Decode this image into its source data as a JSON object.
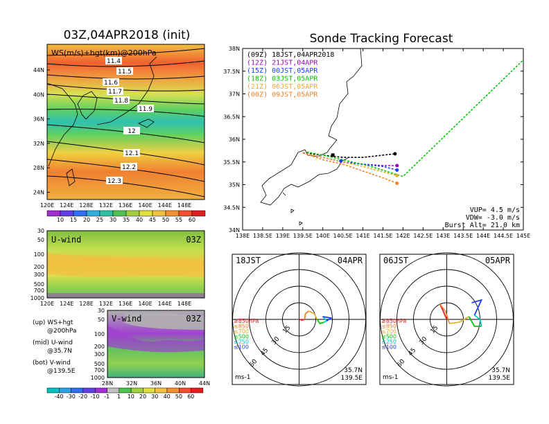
{
  "left_title": "03Z,04APR2018 (init)",
  "right_title": "Sonde Tracking Forecast",
  "ws_panel": {
    "label": "WS(m/s)+hgt(km)@200hPa",
    "lat_labels": [
      "44N",
      "40N",
      "36N",
      "32N",
      "28N",
      "24N"
    ],
    "lon_labels": [
      "120E",
      "124E",
      "128E",
      "132E",
      "136E",
      "140E",
      "144E",
      "148E"
    ],
    "contours": [
      "11.4",
      "11.5",
      "11.6",
      "11.7",
      "11.8",
      "11.9",
      "12",
      "12.1",
      "12.2",
      "12.3"
    ],
    "colorbar": [
      "10",
      "15",
      "20",
      "25",
      "30",
      "35",
      "40",
      "45",
      "50",
      "55",
      "60"
    ]
  },
  "uwind_panel": {
    "label": "U-wind",
    "time": "03Z",
    "p_labels": [
      "30",
      "50",
      "100",
      "200",
      "300",
      "500",
      "700",
      "1000"
    ],
    "lon_labels": [
      "120E",
      "124E",
      "128E",
      "132E",
      "136E",
      "140E",
      "144E",
      "148E"
    ]
  },
  "vwind_panel": {
    "label": "V-wind",
    "time": "03Z",
    "p_labels": [
      "30",
      "50",
      "100",
      "200",
      "300",
      "500",
      "700",
      "1000"
    ],
    "lat_labels": [
      "28N",
      "32N",
      "36N",
      "40N",
      "44N"
    ],
    "colorbar": [
      "-40",
      "-30",
      "-20",
      "-10",
      "-1",
      "1",
      "10",
      "20",
      "30",
      "40",
      "50",
      "60"
    ]
  },
  "legend_notes": [
    {
      "a": "(up) WS+hgt",
      "b": "@200hPa"
    },
    {
      "a": "(mid) U-wind",
      "b": "@35.7N"
    },
    {
      "a": "(bot) V-wind",
      "b": "@139.5E"
    }
  ],
  "track_panel": {
    "lat_labels": [
      "38N",
      "37.5N",
      "37N",
      "36.5N",
      "36N",
      "35.5N",
      "35N",
      "34.5N",
      "34N"
    ],
    "lon_labels": [
      "138E",
      "138.5E",
      "139E",
      "139.5E",
      "140E",
      "140.5E",
      "141E",
      "141.5E",
      "142E",
      "142.5E",
      "143E",
      "143.5E",
      "144E",
      "144.5E",
      "145E"
    ],
    "legend": [
      {
        "text": "(09Z)  18JST,04APR2018",
        "color": "#000000"
      },
      {
        "text": "(12Z)  21JST,04APR",
        "color": "#a000c8"
      },
      {
        "text": "(15Z)  00JST,05APR",
        "color": "#1e3cff"
      },
      {
        "text": "(18Z)  03JST,05APR",
        "color": "#00c800"
      },
      {
        "text": "(21Z)  06JST,05APR",
        "color": "#e6af2d"
      },
      {
        "text": "(00Z)  09JST,05APR",
        "color": "#f08228"
      }
    ],
    "params": [
      "VUP=  4.5 m/s",
      "VDW= -3.0 m/s",
      "Burst Alt= 21.0 km"
    ]
  },
  "hodo1": {
    "time": "18JST",
    "date": "04APR",
    "rings": [
      "15",
      "30",
      "45",
      "60"
    ],
    "legend": [
      {
        "text": "≥850hPa",
        "color": "#e61e1e"
      },
      {
        "text": "≤850",
        "color": "#f08228"
      },
      {
        "text": "≤700",
        "color": "#e6af2d"
      },
      {
        "text": "≤500",
        "color": "#00c800"
      },
      {
        "text": "≤250",
        "color": "#00c8c8"
      },
      {
        "text": "≤100",
        "color": "#1e3cff"
      }
    ],
    "units": "ms-1",
    "lat": "35.7N",
    "lon": "139.5E"
  },
  "hodo2": {
    "time": "06JST",
    "date": "05APR",
    "rings": [
      "15",
      "30",
      "45",
      "60"
    ],
    "legend": [
      {
        "text": "≥850hPa",
        "color": "#e61e1e"
      },
      {
        "text": "≤850",
        "color": "#f08228"
      },
      {
        "text": "≤700",
        "color": "#e6af2d"
      },
      {
        "text": "≤500",
        "color": "#00c800"
      },
      {
        "text": "≤250",
        "color": "#00c8c8"
      },
      {
        "text": "≤100",
        "color": "#1e3cff"
      }
    ],
    "units": "ms-1",
    "lat": "35.7N",
    "lon": "139.5E"
  },
  "chart_data": [
    {
      "type": "line",
      "xlim": [
        138,
        145
      ],
      "ylim": [
        34,
        38
      ],
      "xlabel": "",
      "ylabel": "",
      "series": [
        {
          "color": "#000000",
          "x": [
            139.5,
            140.0,
            140.5,
            141.0,
            141.5,
            141.8
          ],
          "y": [
            35.7,
            35.65,
            35.6,
            35.6,
            35.65,
            35.68
          ]
        },
        {
          "color": "#a000c8",
          "x": [
            139.5,
            140.0,
            140.5,
            141.0,
            141.5,
            141.85
          ],
          "y": [
            35.7,
            35.6,
            35.5,
            35.45,
            35.42,
            35.42
          ]
        },
        {
          "color": "#1e3cff",
          "x": [
            139.5,
            140.0,
            140.5,
            141.0,
            141.5,
            141.85
          ],
          "y": [
            35.7,
            35.6,
            35.5,
            35.45,
            35.4,
            35.32
          ]
        },
        {
          "color": "#00c800",
          "x": [
            139.6,
            140.0,
            140.5,
            141.2,
            142.0,
            145.0
          ],
          "y": [
            35.72,
            35.65,
            35.55,
            35.4,
            35.18,
            37.75
          ]
        },
        {
          "color": "#e6af2d",
          "x": [
            139.5,
            140.0,
            140.5,
            141.0,
            141.5,
            141.85
          ],
          "y": [
            35.7,
            35.6,
            35.5,
            35.4,
            35.28,
            35.2
          ]
        },
        {
          "color": "#f08228",
          "x": [
            139.5,
            140.0,
            140.5,
            141.0,
            141.5,
            141.85
          ],
          "y": [
            35.7,
            35.55,
            35.45,
            35.3,
            35.15,
            35.03
          ]
        }
      ]
    }
  ]
}
